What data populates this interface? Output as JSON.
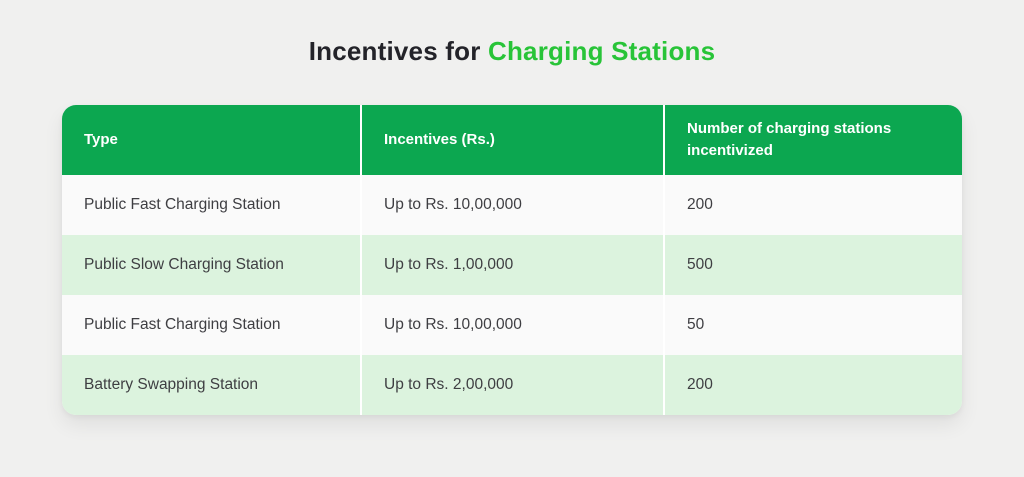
{
  "title": {
    "prefix": "Incentives for ",
    "highlight": "Charging Stations"
  },
  "colors": {
    "page-bg": "#f0f0ef",
    "header-green": "#0ca750",
    "title-green": "#28c438",
    "title-dark": "#232329",
    "row-light": "#fafafa",
    "row-green": "#dcf3de",
    "row-text": "#3e3e42",
    "divider": "#ffffff"
  },
  "table": {
    "headers": [
      "Type",
      "Incentives (Rs.)",
      "Number of charging stations incentivized"
    ],
    "rows": [
      [
        "Public Fast Charging Station",
        "Up to Rs. 10,00,000",
        "200"
      ],
      [
        "Public Slow Charging Station",
        "Up to Rs. 1,00,000",
        "500"
      ],
      [
        "Public Fast Charging Station",
        "Up to Rs. 10,00,000",
        "50"
      ],
      [
        "Battery Swapping Station",
        "Up to Rs. 2,00,000",
        "200"
      ]
    ]
  }
}
